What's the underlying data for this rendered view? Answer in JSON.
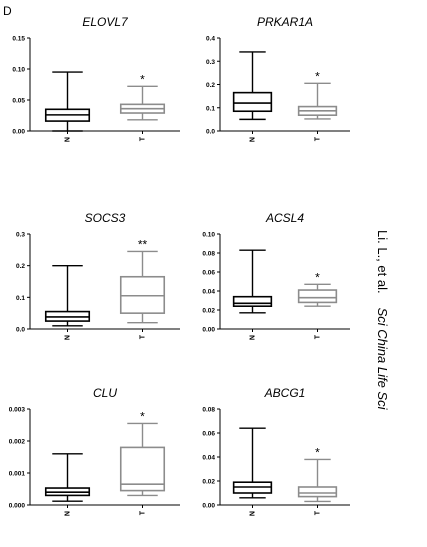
{
  "panel_label": "D",
  "side_caption": {
    "authors": "Li. L., et al.",
    "journal": "Sci China Life Sci"
  },
  "chart_data": [
    {
      "type": "boxplot",
      "title": "ELOVL7",
      "ylim": [
        0,
        0.15
      ],
      "yticks": [
        "0.00",
        "0.05",
        "0.10",
        "0.15"
      ],
      "ytick_values": [
        0,
        0.05,
        0.1,
        0.15
      ],
      "categories": [
        "N",
        "T"
      ],
      "boxes": [
        {
          "name": "N",
          "min": 0.0,
          "q1": 0.016,
          "median": 0.026,
          "q3": 0.035,
          "max": 0.095,
          "color": "#000000"
        },
        {
          "name": "T",
          "min": 0.018,
          "q1": 0.029,
          "median": 0.036,
          "q3": 0.043,
          "max": 0.072,
          "color": "#8c8c8c"
        }
      ],
      "annotation": "*"
    },
    {
      "type": "boxplot",
      "title": "PRKAR1A",
      "ylim": [
        0,
        0.4
      ],
      "yticks": [
        "0.0",
        "0.1",
        "0.2",
        "0.3",
        "0.4"
      ],
      "ytick_values": [
        0,
        0.1,
        0.2,
        0.3,
        0.4
      ],
      "categories": [
        "N",
        "T"
      ],
      "boxes": [
        {
          "name": "N",
          "min": 0.05,
          "q1": 0.085,
          "median": 0.12,
          "q3": 0.165,
          "max": 0.34,
          "color": "#000000"
        },
        {
          "name": "T",
          "min": 0.052,
          "q1": 0.068,
          "median": 0.087,
          "q3": 0.105,
          "max": 0.205,
          "color": "#8c8c8c"
        }
      ],
      "annotation": "*"
    },
    {
      "type": "boxplot",
      "title": "SOCS3",
      "ylim": [
        0,
        0.3
      ],
      "yticks": [
        "0.0",
        "0.1",
        "0.2",
        "0.3"
      ],
      "ytick_values": [
        0,
        0.1,
        0.2,
        0.3
      ],
      "categories": [
        "N",
        "T"
      ],
      "boxes": [
        {
          "name": "N",
          "min": 0.01,
          "q1": 0.025,
          "median": 0.038,
          "q3": 0.055,
          "max": 0.2,
          "color": "#000000"
        },
        {
          "name": "T",
          "min": 0.02,
          "q1": 0.05,
          "median": 0.105,
          "q3": 0.165,
          "max": 0.245,
          "color": "#8c8c8c"
        }
      ],
      "annotation": "**"
    },
    {
      "type": "boxplot",
      "title": "ACSL4",
      "ylim": [
        0,
        0.1
      ],
      "yticks": [
        "0.00",
        "0.02",
        "0.04",
        "0.06",
        "0.08",
        "0.10"
      ],
      "ytick_values": [
        0,
        0.02,
        0.04,
        0.06,
        0.08,
        0.1
      ],
      "categories": [
        "N",
        "T"
      ],
      "boxes": [
        {
          "name": "N",
          "min": 0.017,
          "q1": 0.024,
          "median": 0.027,
          "q3": 0.034,
          "max": 0.083,
          "color": "#000000"
        },
        {
          "name": "T",
          "min": 0.024,
          "q1": 0.028,
          "median": 0.033,
          "q3": 0.041,
          "max": 0.047,
          "color": "#8c8c8c"
        }
      ],
      "annotation": "*"
    },
    {
      "type": "boxplot",
      "title": "CLU",
      "ylim": [
        0,
        0.003
      ],
      "yticks": [
        "0.000",
        "0.001",
        "0.002",
        "0.003"
      ],
      "ytick_values": [
        0,
        0.001,
        0.002,
        0.003
      ],
      "categories": [
        "N",
        "T"
      ],
      "boxes": [
        {
          "name": "N",
          "min": 0.00012,
          "q1": 0.0003,
          "median": 0.0004,
          "q3": 0.00053,
          "max": 0.0016,
          "color": "#000000"
        },
        {
          "name": "T",
          "min": 0.0003,
          "q1": 0.00045,
          "median": 0.00065,
          "q3": 0.0018,
          "max": 0.00255,
          "color": "#8c8c8c"
        }
      ],
      "annotation": "*"
    },
    {
      "type": "boxplot",
      "title": "ABCG1",
      "ylim": [
        0,
        0.08
      ],
      "yticks": [
        "0.00",
        "0.02",
        "0.04",
        "0.06",
        "0.08"
      ],
      "ytick_values": [
        0,
        0.02,
        0.04,
        0.06,
        0.08
      ],
      "categories": [
        "N",
        "T"
      ],
      "boxes": [
        {
          "name": "N",
          "min": 0.006,
          "q1": 0.01,
          "median": 0.015,
          "q3": 0.019,
          "max": 0.064,
          "color": "#000000"
        },
        {
          "name": "T",
          "min": 0.003,
          "q1": 0.007,
          "median": 0.01,
          "q3": 0.015,
          "max": 0.038,
          "color": "#8c8c8c"
        }
      ],
      "annotation": "*"
    }
  ]
}
